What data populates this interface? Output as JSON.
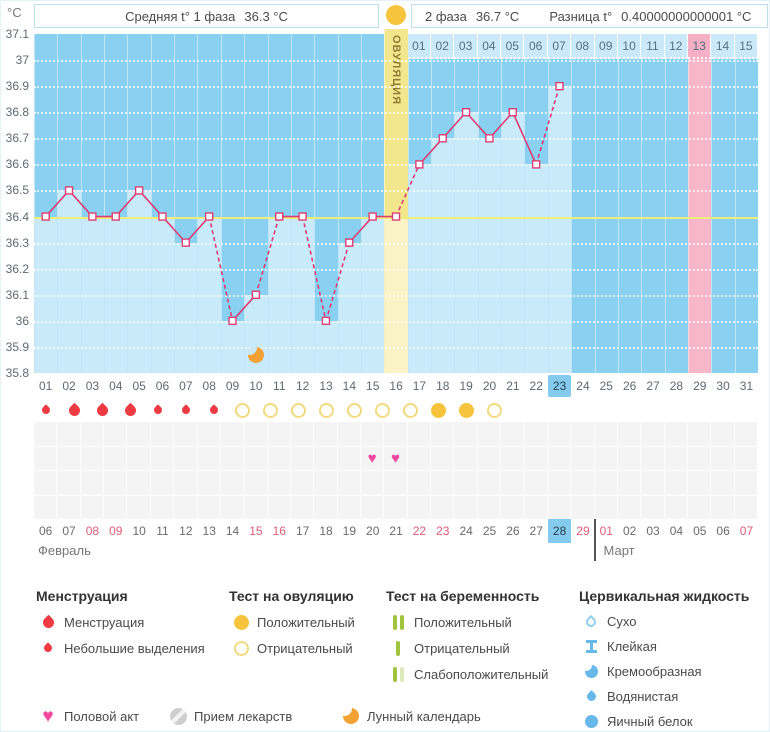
{
  "header": {
    "unit_label": "°C",
    "phase1_label": "Средняя t° 1 фаза",
    "phase1_value": "36.3 °C",
    "phase2_label": "2 фаза",
    "phase2_value": "36.7 °C",
    "diff_label": "Разница t°",
    "diff_value": "0.40000000000001 °C"
  },
  "chart_data": {
    "type": "line",
    "title": "Basal body temperature chart",
    "ylabel": "°C",
    "ylim": [
      35.8,
      37.1
    ],
    "yticks": [
      "37.1",
      "37",
      "36.9",
      "36.8",
      "36.7",
      "36.6",
      "36.5",
      "36.4",
      "36.3",
      "36.2",
      "36.1",
      "36",
      "35.9",
      "35.8"
    ],
    "categories": [
      "01",
      "02",
      "03",
      "04",
      "05",
      "06",
      "07",
      "08",
      "09",
      "10",
      "11",
      "12",
      "13",
      "14",
      "15",
      "16",
      "17",
      "18",
      "19",
      "20",
      "21",
      "22",
      "23",
      "24",
      "25",
      "26",
      "27",
      "28",
      "29",
      "30",
      "31"
    ],
    "temperatures": [
      36.4,
      36.5,
      36.4,
      36.4,
      36.5,
      36.4,
      36.3,
      36.4,
      36.0,
      36.1,
      36.4,
      36.4,
      36.0,
      36.3,
      36.4,
      36.4,
      36.6,
      36.7,
      36.8,
      36.7,
      36.8,
      36.6,
      36.9,
      null,
      null,
      null,
      null,
      null,
      null,
      null,
      null
    ],
    "coverline": 36.4,
    "ovulation_day": 16,
    "ovulation_label": "ОВУЛЯЦИЯ",
    "expected_period_day": 29,
    "today_cycle_day": 23,
    "moon_day": 10,
    "dpo_labels": [
      "01",
      "02",
      "03",
      "04",
      "05",
      "06",
      "07",
      "08",
      "09",
      "10",
      "11",
      "12",
      "13",
      "14",
      "15"
    ],
    "dpo_highlight": "13"
  },
  "day_row": {
    "labels": [
      "01",
      "02",
      "03",
      "04",
      "05",
      "06",
      "07",
      "08",
      "09",
      "10",
      "11",
      "12",
      "13",
      "14",
      "15",
      "16",
      "17",
      "18",
      "19",
      "20",
      "21",
      "22",
      "23",
      "24",
      "25",
      "26",
      "27",
      "28",
      "29",
      "30",
      "31"
    ],
    "today": "23"
  },
  "symbols": {
    "menstruation": [
      {
        "day": 1,
        "size": "small"
      },
      {
        "day": 2,
        "size": "large"
      },
      {
        "day": 3,
        "size": "large"
      },
      {
        "day": 4,
        "size": "large"
      },
      {
        "day": 5,
        "size": "small"
      },
      {
        "day": 6,
        "size": "small"
      },
      {
        "day": 7,
        "size": "small"
      }
    ],
    "ovulation_tests": [
      {
        "day": 8,
        "result": "negative"
      },
      {
        "day": 9,
        "result": "negative"
      },
      {
        "day": 10,
        "result": "negative"
      },
      {
        "day": 11,
        "result": "negative"
      },
      {
        "day": 12,
        "result": "negative"
      },
      {
        "day": 13,
        "result": "negative"
      },
      {
        "day": 14,
        "result": "negative"
      },
      {
        "day": 15,
        "result": "positive"
      },
      {
        "day": 16,
        "result": "positive"
      },
      {
        "day": 17,
        "result": "negative"
      }
    ],
    "intercourse_days": [
      15,
      16
    ]
  },
  "calendar": {
    "dates": [
      "06",
      "07",
      "08",
      "09",
      "10",
      "11",
      "12",
      "13",
      "14",
      "15",
      "16",
      "17",
      "18",
      "19",
      "20",
      "21",
      "22",
      "23",
      "24",
      "25",
      "26",
      "27",
      "28",
      "29",
      "01",
      "02",
      "03",
      "04",
      "05",
      "06",
      "07"
    ],
    "weekend_indices": [
      2,
      3,
      9,
      10,
      16,
      17,
      23,
      24,
      30
    ],
    "today_index": 22,
    "month1": "Февраль",
    "month2": "Март",
    "month2_start_index": 24
  },
  "legend": {
    "sections": {
      "menstruation": {
        "title": "Менструация",
        "items": [
          {
            "icon": "drop-large",
            "label": "Менструация"
          },
          {
            "icon": "drop-small",
            "label": "Небольшие выделения"
          }
        ]
      },
      "ovulation_test": {
        "title": "Тест на овуляцию",
        "items": [
          {
            "icon": "circle-filled",
            "label": "Положительный"
          },
          {
            "icon": "circle-outline",
            "label": "Отрицательный"
          }
        ]
      },
      "pregnancy_test": {
        "title": "Тест на беременность",
        "items": [
          {
            "icon": "bars-two",
            "label": "Положительный"
          },
          {
            "icon": "bar-one",
            "label": "Отрицательный"
          },
          {
            "icon": "bars-weak",
            "label": "Слабоположительный"
          }
        ]
      },
      "cervical_fluid": {
        "title": "Цервикальная жидкость",
        "items": [
          {
            "icon": "drop-outline",
            "label": "Сухо"
          },
          {
            "icon": "ibeam",
            "label": "Клейкая"
          },
          {
            "icon": "comma",
            "label": "Кремообразная"
          },
          {
            "icon": "drop-water",
            "label": "Водянистая"
          },
          {
            "icon": "dot-blue",
            "label": "Яичный белок"
          }
        ]
      }
    },
    "extra": [
      {
        "icon": "heart",
        "label": "Половой акт"
      },
      {
        "icon": "pill",
        "label": "Прием лекарств"
      },
      {
        "icon": "moon",
        "label": "Лунный календарь"
      }
    ]
  },
  "colors": {
    "sky_blue": "#8ad0f0",
    "fill_blue": "#c9eaf9",
    "ovulation_yellow": "#f3e78e",
    "ovulation_yellow_light": "#f9f3c5",
    "period_pink": "#f7b6c9",
    "coverline_yellow": "#edee7c",
    "temp_line": "#dc3d72",
    "today_highlight": "#84cbee",
    "weekend_red": "#e05d75",
    "menstruation_red": "#ee3a42",
    "test_yellow": "#f5c43c",
    "pregnancy_green": "#a0c43e",
    "fluid_blue": "#66b9e8",
    "heart_pink": "#f1479e",
    "moon_orange": "#f2a235"
  }
}
